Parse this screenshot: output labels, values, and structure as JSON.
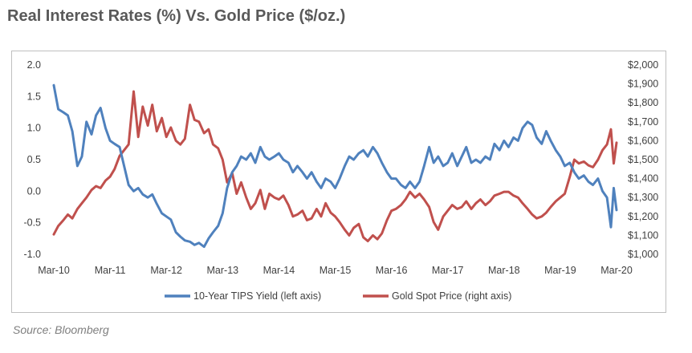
{
  "title": "Real Interest Rates (%) Vs. Gold Price ($/oz.)",
  "source": "Source: Bloomberg",
  "chart_data": {
    "type": "line",
    "title": "Real Interest Rates (%) Vs. Gold Price ($/oz.)",
    "x_ticks": [
      "Mar-10",
      "Mar-11",
      "Mar-12",
      "Mar-13",
      "Mar-14",
      "Mar-15",
      "Mar-16",
      "Mar-17",
      "Mar-18",
      "Mar-19",
      "Mar-20"
    ],
    "left_axis": {
      "label": "10-Year TIPS Yield (%)",
      "ylim": [
        -1.0,
        2.0
      ],
      "ticks": [
        "2.0",
        "1.5",
        "1.0",
        "0.5",
        "0.0",
        "-0.5",
        "-1.0"
      ]
    },
    "right_axis": {
      "label": "Gold Spot Price ($/oz.)",
      "ylim": [
        1000,
        2000
      ],
      "ticks": [
        "$2,000",
        "$1,900",
        "$1,800",
        "$1,700",
        "$1,600",
        "$1,500",
        "$1,400",
        "$1,300",
        "$1,200",
        "$1,100",
        "$1,000"
      ]
    },
    "legend_position": "bottom",
    "series": [
      {
        "name": "10-Year TIPS Yield (left axis)",
        "axis": "left",
        "color": "#4f81bd",
        "points": [
          [
            0.0,
            1.68
          ],
          [
            0.08,
            1.3
          ],
          [
            0.17,
            1.25
          ],
          [
            0.25,
            1.2
          ],
          [
            0.33,
            0.95
          ],
          [
            0.42,
            0.4
          ],
          [
            0.5,
            0.55
          ],
          [
            0.58,
            1.1
          ],
          [
            0.67,
            0.9
          ],
          [
            0.75,
            1.2
          ],
          [
            0.83,
            1.32
          ],
          [
            0.92,
            1.0
          ],
          [
            1.0,
            0.8
          ],
          [
            1.08,
            0.75
          ],
          [
            1.17,
            0.7
          ],
          [
            1.25,
            0.4
          ],
          [
            1.33,
            0.1
          ],
          [
            1.42,
            0.0
          ],
          [
            1.5,
            0.05
          ],
          [
            1.58,
            -0.05
          ],
          [
            1.67,
            -0.1
          ],
          [
            1.75,
            -0.05
          ],
          [
            1.83,
            -0.2
          ],
          [
            1.92,
            -0.35
          ],
          [
            2.0,
            -0.4
          ],
          [
            2.08,
            -0.45
          ],
          [
            2.17,
            -0.65
          ],
          [
            2.25,
            -0.72
          ],
          [
            2.33,
            -0.78
          ],
          [
            2.42,
            -0.8
          ],
          [
            2.5,
            -0.85
          ],
          [
            2.58,
            -0.82
          ],
          [
            2.67,
            -0.88
          ],
          [
            2.75,
            -0.75
          ],
          [
            2.83,
            -0.65
          ],
          [
            2.92,
            -0.55
          ],
          [
            3.0,
            -0.35
          ],
          [
            3.08,
            0.05
          ],
          [
            3.17,
            0.3
          ],
          [
            3.25,
            0.4
          ],
          [
            3.33,
            0.55
          ],
          [
            3.42,
            0.5
          ],
          [
            3.5,
            0.6
          ],
          [
            3.58,
            0.45
          ],
          [
            3.67,
            0.7
          ],
          [
            3.75,
            0.55
          ],
          [
            3.83,
            0.5
          ],
          [
            3.92,
            0.55
          ],
          [
            4.0,
            0.6
          ],
          [
            4.08,
            0.5
          ],
          [
            4.17,
            0.45
          ],
          [
            4.25,
            0.3
          ],
          [
            4.33,
            0.4
          ],
          [
            4.42,
            0.3
          ],
          [
            4.5,
            0.2
          ],
          [
            4.58,
            0.3
          ],
          [
            4.67,
            0.15
          ],
          [
            4.75,
            0.05
          ],
          [
            4.83,
            0.2
          ],
          [
            4.92,
            0.15
          ],
          [
            5.0,
            0.05
          ],
          [
            5.08,
            0.2
          ],
          [
            5.17,
            0.4
          ],
          [
            5.25,
            0.55
          ],
          [
            5.33,
            0.5
          ],
          [
            5.42,
            0.6
          ],
          [
            5.5,
            0.65
          ],
          [
            5.58,
            0.55
          ],
          [
            5.67,
            0.7
          ],
          [
            5.75,
            0.6
          ],
          [
            5.83,
            0.45
          ],
          [
            5.92,
            0.3
          ],
          [
            6.0,
            0.2
          ],
          [
            6.08,
            0.2
          ],
          [
            6.17,
            0.1
          ],
          [
            6.25,
            0.05
          ],
          [
            6.33,
            0.15
          ],
          [
            6.42,
            0.05
          ],
          [
            6.5,
            0.15
          ],
          [
            6.58,
            0.4
          ],
          [
            6.67,
            0.7
          ],
          [
            6.75,
            0.45
          ],
          [
            6.83,
            0.55
          ],
          [
            6.92,
            0.4
          ],
          [
            7.0,
            0.45
          ],
          [
            7.08,
            0.6
          ],
          [
            7.17,
            0.4
          ],
          [
            7.25,
            0.55
          ],
          [
            7.33,
            0.7
          ],
          [
            7.42,
            0.45
          ],
          [
            7.5,
            0.5
          ],
          [
            7.58,
            0.45
          ],
          [
            7.67,
            0.55
          ],
          [
            7.75,
            0.5
          ],
          [
            7.83,
            0.75
          ],
          [
            7.92,
            0.65
          ],
          [
            8.0,
            0.8
          ],
          [
            8.08,
            0.7
          ],
          [
            8.17,
            0.85
          ],
          [
            8.25,
            0.8
          ],
          [
            8.33,
            1.0
          ],
          [
            8.42,
            1.1
          ],
          [
            8.5,
            1.05
          ],
          [
            8.58,
            0.85
          ],
          [
            8.67,
            0.75
          ],
          [
            8.75,
            0.95
          ],
          [
            8.83,
            0.8
          ],
          [
            8.92,
            0.65
          ],
          [
            9.0,
            0.55
          ],
          [
            9.08,
            0.4
          ],
          [
            9.17,
            0.45
          ],
          [
            9.25,
            0.3
          ],
          [
            9.33,
            0.2
          ],
          [
            9.42,
            0.25
          ],
          [
            9.5,
            0.15
          ],
          [
            9.58,
            0.1
          ],
          [
            9.67,
            0.2
          ],
          [
            9.75,
            0.0
          ],
          [
            9.83,
            -0.1
          ],
          [
            9.9,
            -0.57
          ],
          [
            9.95,
            0.05
          ],
          [
            10.0,
            -0.3
          ]
        ]
      },
      {
        "name": "Gold Spot Price (right axis)",
        "axis": "right",
        "color": "#c0504d",
        "points": [
          [
            0.0,
            1105
          ],
          [
            0.08,
            1150
          ],
          [
            0.17,
            1180
          ],
          [
            0.25,
            1210
          ],
          [
            0.33,
            1190
          ],
          [
            0.42,
            1240
          ],
          [
            0.5,
            1270
          ],
          [
            0.58,
            1300
          ],
          [
            0.67,
            1340
          ],
          [
            0.75,
            1360
          ],
          [
            0.83,
            1350
          ],
          [
            0.92,
            1390
          ],
          [
            1.0,
            1410
          ],
          [
            1.08,
            1450
          ],
          [
            1.17,
            1520
          ],
          [
            1.25,
            1550
          ],
          [
            1.33,
            1580
          ],
          [
            1.42,
            1860
          ],
          [
            1.5,
            1620
          ],
          [
            1.58,
            1780
          ],
          [
            1.67,
            1680
          ],
          [
            1.75,
            1790
          ],
          [
            1.83,
            1650
          ],
          [
            1.92,
            1720
          ],
          [
            2.0,
            1620
          ],
          [
            2.08,
            1670
          ],
          [
            2.17,
            1600
          ],
          [
            2.25,
            1580
          ],
          [
            2.33,
            1610
          ],
          [
            2.42,
            1790
          ],
          [
            2.5,
            1710
          ],
          [
            2.58,
            1700
          ],
          [
            2.67,
            1640
          ],
          [
            2.75,
            1660
          ],
          [
            2.83,
            1580
          ],
          [
            2.92,
            1560
          ],
          [
            3.0,
            1500
          ],
          [
            3.08,
            1380
          ],
          [
            3.17,
            1430
          ],
          [
            3.25,
            1320
          ],
          [
            3.33,
            1380
          ],
          [
            3.42,
            1300
          ],
          [
            3.5,
            1240
          ],
          [
            3.58,
            1270
          ],
          [
            3.67,
            1340
          ],
          [
            3.75,
            1240
          ],
          [
            3.83,
            1320
          ],
          [
            3.92,
            1300
          ],
          [
            4.0,
            1290
          ],
          [
            4.08,
            1310
          ],
          [
            4.17,
            1260
          ],
          [
            4.25,
            1200
          ],
          [
            4.33,
            1210
          ],
          [
            4.42,
            1230
          ],
          [
            4.5,
            1180
          ],
          [
            4.58,
            1190
          ],
          [
            4.67,
            1240
          ],
          [
            4.75,
            1200
          ],
          [
            4.83,
            1270
          ],
          [
            4.92,
            1220
          ],
          [
            5.0,
            1200
          ],
          [
            5.08,
            1170
          ],
          [
            5.17,
            1130
          ],
          [
            5.25,
            1100
          ],
          [
            5.33,
            1140
          ],
          [
            5.42,
            1160
          ],
          [
            5.5,
            1090
          ],
          [
            5.58,
            1070
          ],
          [
            5.67,
            1100
          ],
          [
            5.75,
            1080
          ],
          [
            5.83,
            1110
          ],
          [
            5.92,
            1180
          ],
          [
            6.0,
            1230
          ],
          [
            6.08,
            1240
          ],
          [
            6.17,
            1260
          ],
          [
            6.25,
            1290
          ],
          [
            6.33,
            1330
          ],
          [
            6.42,
            1300
          ],
          [
            6.5,
            1320
          ],
          [
            6.58,
            1290
          ],
          [
            6.67,
            1250
          ],
          [
            6.75,
            1170
          ],
          [
            6.83,
            1130
          ],
          [
            6.92,
            1200
          ],
          [
            7.0,
            1230
          ],
          [
            7.08,
            1260
          ],
          [
            7.17,
            1240
          ],
          [
            7.25,
            1250
          ],
          [
            7.33,
            1280
          ],
          [
            7.42,
            1240
          ],
          [
            7.5,
            1270
          ],
          [
            7.58,
            1290
          ],
          [
            7.67,
            1260
          ],
          [
            7.75,
            1280
          ],
          [
            7.83,
            1310
          ],
          [
            7.92,
            1320
          ],
          [
            8.0,
            1330
          ],
          [
            8.08,
            1330
          ],
          [
            8.17,
            1310
          ],
          [
            8.25,
            1300
          ],
          [
            8.33,
            1270
          ],
          [
            8.42,
            1240
          ],
          [
            8.5,
            1210
          ],
          [
            8.58,
            1190
          ],
          [
            8.67,
            1200
          ],
          [
            8.75,
            1220
          ],
          [
            8.83,
            1250
          ],
          [
            8.92,
            1280
          ],
          [
            9.0,
            1300
          ],
          [
            9.08,
            1320
          ],
          [
            9.17,
            1410
          ],
          [
            9.25,
            1500
          ],
          [
            9.33,
            1480
          ],
          [
            9.42,
            1490
          ],
          [
            9.5,
            1470
          ],
          [
            9.58,
            1460
          ],
          [
            9.67,
            1500
          ],
          [
            9.75,
            1550
          ],
          [
            9.83,
            1580
          ],
          [
            9.9,
            1660
          ],
          [
            9.95,
            1480
          ],
          [
            10.0,
            1590
          ]
        ]
      }
    ]
  }
}
